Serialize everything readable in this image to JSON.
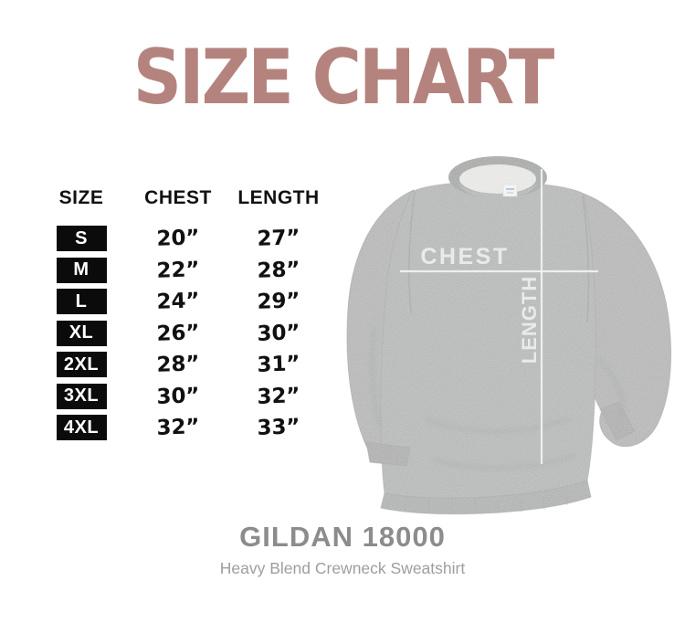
{
  "title": "SIZE CHART",
  "chart_data": {
    "type": "table",
    "title": "SIZE CHART",
    "columns": [
      "SIZE",
      "CHEST",
      "LENGTH"
    ],
    "rows": [
      [
        "S",
        "20”",
        "27”"
      ],
      [
        "M",
        "22”",
        "28”"
      ],
      [
        "L",
        "24”",
        "29”"
      ],
      [
        "XL",
        "26”",
        "30”"
      ],
      [
        "2XL",
        "28”",
        "31”"
      ],
      [
        "3XL",
        "30”",
        "32”"
      ],
      [
        "4XL",
        "32”",
        "33”"
      ]
    ]
  },
  "diagram": {
    "chest_label": "CHEST",
    "length_label": "LENGTH"
  },
  "footer": {
    "product_name": "GILDAN 18000",
    "product_subtitle": "Heavy Blend Crewneck Sweatshirt"
  },
  "colors": {
    "title": "#b5837e",
    "badge_bg": "#0b0b0b",
    "badge_text": "#ffffff",
    "table_text": "#111111",
    "sweatshirt_gray": "#b4b6b5",
    "collar_rib": "#a2a4a3",
    "collar_inner": "#ededeb",
    "measure_line": "#f1f3f2",
    "product_name": "#8c8c8c",
    "product_subtitle": "#9e9e9e"
  }
}
